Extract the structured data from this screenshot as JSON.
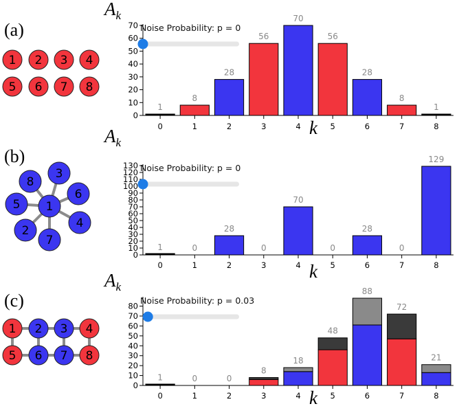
{
  "colors": {
    "red": "#f2353d",
    "blue": "#3b36f0",
    "black": "#000000",
    "dark_gray": "#3a3a3a",
    "light_gray": "#8a8a8a",
    "data_label": "#888888",
    "edge": "#8c8c8c",
    "slider_track": "#e6e6e6",
    "slider_thumb": "#1e7ce6"
  },
  "panels": [
    {
      "letter": "(a)",
      "graph": {
        "nodes": [
          {
            "label": "1",
            "color": "red"
          },
          {
            "label": "2",
            "color": "red"
          },
          {
            "label": "3",
            "color": "red"
          },
          {
            "label": "4",
            "color": "red"
          },
          {
            "label": "5",
            "color": "red"
          },
          {
            "label": "6",
            "color": "red"
          },
          {
            "label": "7",
            "color": "red"
          },
          {
            "label": "8",
            "color": "red"
          }
        ],
        "edges": []
      }
    },
    {
      "letter": "(b)",
      "graph": {
        "nodes": [
          {
            "label": "1",
            "color": "blue"
          },
          {
            "label": "2",
            "color": "blue"
          },
          {
            "label": "3",
            "color": "blue"
          },
          {
            "label": "4",
            "color": "blue"
          },
          {
            "label": "5",
            "color": "blue"
          },
          {
            "label": "6",
            "color": "blue"
          },
          {
            "label": "7",
            "color": "blue"
          },
          {
            "label": "8",
            "color": "blue"
          }
        ],
        "edges": [
          [
            "1",
            "2"
          ],
          [
            "1",
            "3"
          ],
          [
            "1",
            "4"
          ],
          [
            "1",
            "5"
          ],
          [
            "1",
            "6"
          ],
          [
            "1",
            "7"
          ],
          [
            "1",
            "8"
          ]
        ]
      }
    },
    {
      "letter": "(c)",
      "graph": {
        "nodes": [
          {
            "label": "1",
            "color": "red"
          },
          {
            "label": "2",
            "color": "blue"
          },
          {
            "label": "3",
            "color": "blue"
          },
          {
            "label": "4",
            "color": "red"
          },
          {
            "label": "5",
            "color": "red"
          },
          {
            "label": "6",
            "color": "blue"
          },
          {
            "label": "7",
            "color": "blue"
          },
          {
            "label": "8",
            "color": "red"
          }
        ],
        "edges": [
          [
            "1",
            "2"
          ],
          [
            "2",
            "3"
          ],
          [
            "3",
            "4"
          ],
          [
            "5",
            "6"
          ],
          [
            "6",
            "7"
          ],
          [
            "7",
            "8"
          ],
          [
            "1",
            "5"
          ],
          [
            "2",
            "6"
          ],
          [
            "3",
            "7"
          ],
          [
            "4",
            "8"
          ]
        ]
      }
    }
  ],
  "chart_data": [
    {
      "type": "bar",
      "ylabel_main": "A",
      "ylabel_sub": "k",
      "xlabel": "k",
      "noise_text": "Noise Probability: p = 0",
      "noise_value": 0,
      "categories": [
        "0",
        "1",
        "2",
        "3",
        "4",
        "5",
        "6",
        "7",
        "8"
      ],
      "totals": [
        1,
        8,
        28,
        56,
        70,
        56,
        28,
        8,
        1
      ],
      "segments": [
        [
          {
            "value": 1,
            "color": "black"
          }
        ],
        [
          {
            "value": 8,
            "color": "red"
          }
        ],
        [
          {
            "value": 28,
            "color": "blue"
          }
        ],
        [
          {
            "value": 56,
            "color": "red"
          }
        ],
        [
          {
            "value": 70,
            "color": "blue"
          }
        ],
        [
          {
            "value": 56,
            "color": "red"
          }
        ],
        [
          {
            "value": 28,
            "color": "blue"
          }
        ],
        [
          {
            "value": 8,
            "color": "red"
          }
        ],
        [
          {
            "value": 1,
            "color": "black"
          }
        ]
      ],
      "ylim": [
        0,
        70
      ],
      "yticks": [
        "0",
        "10",
        "20",
        "30",
        "40",
        "50",
        "60",
        "70"
      ]
    },
    {
      "type": "bar",
      "ylabel_main": "A",
      "ylabel_sub": "k",
      "xlabel": "k",
      "noise_text": "Noise Probability: p = 0",
      "noise_value": 0,
      "categories": [
        "0",
        "1",
        "2",
        "3",
        "4",
        "5",
        "6",
        "7",
        "8"
      ],
      "totals": [
        1,
        0,
        28,
        0,
        70,
        0,
        28,
        0,
        129
      ],
      "segments": [
        [
          {
            "value": 1,
            "color": "black"
          }
        ],
        [],
        [
          {
            "value": 28,
            "color": "blue"
          }
        ],
        [],
        [
          {
            "value": 70,
            "color": "blue"
          }
        ],
        [],
        [
          {
            "value": 28,
            "color": "blue"
          }
        ],
        [],
        [
          {
            "value": 129,
            "color": "blue"
          }
        ]
      ],
      "ylim": [
        0,
        130
      ],
      "yticks": [
        "0",
        "10",
        "20",
        "30",
        "40",
        "50",
        "60",
        "70",
        "80",
        "90",
        "100",
        "110",
        "120",
        "130"
      ]
    },
    {
      "type": "bar",
      "ylabel_main": "A",
      "ylabel_sub": "k",
      "xlabel": "k",
      "noise_text": "Noise Probability: p = 0.03",
      "noise_value": 0.03,
      "categories": [
        "0",
        "1",
        "2",
        "3",
        "4",
        "5",
        "6",
        "7",
        "8"
      ],
      "totals": [
        1,
        0,
        0,
        8,
        18,
        48,
        88,
        72,
        21
      ],
      "segments": [
        [
          {
            "value": 1,
            "color": "black"
          }
        ],
        [],
        [],
        [
          {
            "value": 6,
            "color": "red"
          },
          {
            "value": 2,
            "color": "dark_gray"
          }
        ],
        [
          {
            "value": 14,
            "color": "blue"
          },
          {
            "value": 4,
            "color": "light_gray"
          }
        ],
        [
          {
            "value": 36,
            "color": "red"
          },
          {
            "value": 12,
            "color": "dark_gray"
          }
        ],
        [
          {
            "value": 61,
            "color": "blue"
          },
          {
            "value": 27,
            "color": "light_gray"
          }
        ],
        [
          {
            "value": 47,
            "color": "red"
          },
          {
            "value": 25,
            "color": "dark_gray"
          }
        ],
        [
          {
            "value": 13,
            "color": "blue"
          },
          {
            "value": 8,
            "color": "light_gray"
          }
        ]
      ],
      "ylim": [
        0,
        88
      ],
      "yticks": [
        "0",
        "10",
        "20",
        "30",
        "40",
        "50",
        "60",
        "70",
        "80"
      ]
    }
  ]
}
